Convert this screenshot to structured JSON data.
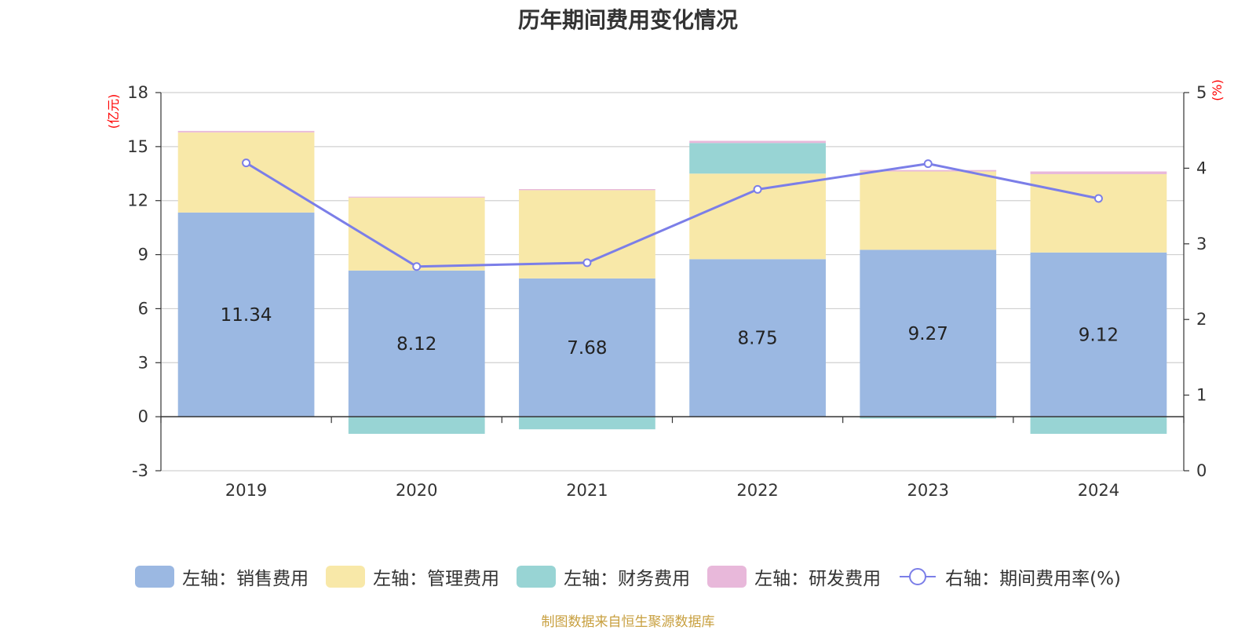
{
  "chart_data": {
    "type": "bar",
    "title": "历年期间费用变化情况",
    "categories": [
      "2019",
      "2020",
      "2021",
      "2022",
      "2023",
      "2024"
    ],
    "left_axis": {
      "unit": "(亿元)",
      "ylim": [
        -3,
        18
      ],
      "ticks": [
        -3,
        0,
        3,
        6,
        9,
        12,
        15,
        18
      ]
    },
    "right_axis": {
      "unit": "(%)",
      "ylim": [
        0,
        5
      ],
      "ticks": [
        0,
        1,
        2,
        3,
        4,
        5
      ]
    },
    "series": [
      {
        "name": "左轴：销售费用",
        "kind": "bar",
        "color": "#9bb8e2",
        "values": [
          11.34,
          8.12,
          7.68,
          8.75,
          9.27,
          9.12
        ]
      },
      {
        "name": "左轴：管理费用",
        "kind": "bar",
        "color": "#f8e8a8",
        "values": [
          4.45,
          4.05,
          4.9,
          4.75,
          4.35,
          4.35
        ]
      },
      {
        "name": "左轴：财务费用",
        "kind": "bar",
        "color": "#98d4d4",
        "values": [
          0.0,
          -0.95,
          -0.7,
          1.7,
          -0.1,
          -0.95
        ]
      },
      {
        "name": "左轴：研发费用",
        "kind": "bar",
        "color": "#e8b8da",
        "values": [
          0.08,
          0.05,
          0.06,
          0.12,
          0.08,
          0.15
        ]
      },
      {
        "name": "右轴：期间费用率(%)",
        "kind": "line",
        "color": "#7b7ee8",
        "axis": "right",
        "values": [
          4.07,
          2.7,
          2.75,
          3.72,
          4.06,
          3.6
        ]
      }
    ],
    "data_labels": [
      "11.34",
      "8.12",
      "7.68",
      "8.75",
      "9.27",
      "9.12"
    ],
    "grid": true,
    "legend_position": "bottom"
  },
  "source_note": "制图数据来自恒生聚源数据库"
}
